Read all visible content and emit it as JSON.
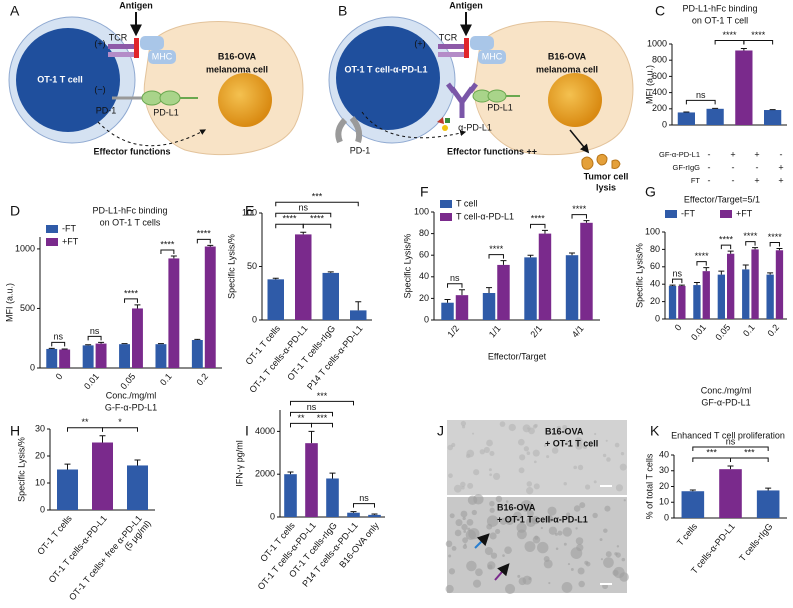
{
  "panel_labels": [
    "A",
    "B",
    "C",
    "D",
    "E",
    "F",
    "G",
    "H",
    "I",
    "J",
    "K"
  ],
  "diagram_a": {
    "antigen": "Antigen",
    "tcr": "TCR",
    "mhc": "MHC",
    "t_cell": "OT-1 T cell",
    "tumor": [
      "B16-OVA",
      "melanoma cell"
    ],
    "plus": "(+)",
    "minus": "(−)",
    "pd1": "PD-1",
    "pdl1": "PD-L1",
    "effector": "Effector functions"
  },
  "diagram_b": {
    "antigen": "Antigen",
    "tcr": "TCR",
    "mhc": "MHC",
    "t_cell": "OT-1 T cell-α-PD-L1",
    "tumor": [
      "B16-OVA",
      "melanoma cell"
    ],
    "plus": "(+)",
    "pdl1": "PD-L1",
    "antibody": "α-PD-L1",
    "pd1": "PD-1",
    "effector": "Effector functions ++",
    "lysis": [
      "Tumor cell",
      "lysis"
    ]
  },
  "image_j": {
    "top_caption": [
      "B16-OVA",
      "+ OT-1 T cell"
    ],
    "bottom_caption": [
      "B16-OVA",
      "+ OT-1 T cell-α-PD-L1"
    ]
  },
  "chart_data": [
    {
      "type": "bar",
      "title": [
        "PD-L1-hFc binding",
        "on OT-1 T cell"
      ],
      "y_label": "MFI (a.u.)",
      "values": [
        155,
        200,
        920,
        185
      ],
      "errors": [
        5,
        5,
        25,
        5
      ],
      "colors": [
        "#2f5ba8",
        "#2f5ba8",
        "#7a2a8c",
        "#2f5ba8"
      ],
      "ylim": [
        0,
        1000
      ],
      "yticks": [
        0,
        200,
        400,
        600,
        800,
        1000
      ],
      "conditions": [
        {
          "name": "GF-α-PD-L1",
          "marks": [
            "-",
            "+",
            "+",
            "-"
          ]
        },
        {
          "name": "GF-rIgG",
          "marks": [
            "-",
            "-",
            "-",
            "+"
          ]
        },
        {
          "name": "FT",
          "marks": [
            "-",
            "-",
            "+",
            "+"
          ]
        }
      ],
      "annotations": [
        {
          "label": "ns",
          "from": 0,
          "to": 1
        },
        {
          "label": "****",
          "from": 1,
          "to": 2
        },
        {
          "label": "****",
          "from": 2,
          "to": 3
        }
      ]
    },
    {
      "type": "grouped_bar",
      "title": [
        "PD-L1-hFc binding",
        "on OT-1 T cells"
      ],
      "y_label": "MFI (a.u.)",
      "x_label": [
        "Conc./mg/ml",
        "G-F-α-PD-L1"
      ],
      "categories": [
        "0",
        "0.01",
        "0.05",
        "0.1",
        "0.2"
      ],
      "series": [
        {
          "name": "-FT",
          "color": "#2f5ba8",
          "values": [
            160,
            190,
            200,
            200,
            235
          ],
          "errors": [
            5,
            5,
            5,
            5,
            5
          ]
        },
        {
          "name": "+FT",
          "color": "#7a2a8c",
          "values": [
            155,
            205,
            500,
            920,
            1020
          ],
          "errors": [
            5,
            10,
            30,
            20,
            10
          ]
        }
      ],
      "ylim": [
        0,
        1100
      ],
      "yticks": [
        0,
        500,
        1000
      ],
      "legend": "upper left",
      "pair_labels": [
        "ns",
        "ns",
        "****",
        "****",
        "****"
      ]
    },
    {
      "type": "bar",
      "y_label": "Specific Lysis/%",
      "categories": [
        "OT-1 T cells",
        "OT-1 T cells-α-PD-L1",
        "OT-1 T cells-rIgG",
        "P14 T cells-α-PD-L1"
      ],
      "values": [
        38,
        80,
        44,
        9
      ],
      "errors": [
        1,
        2,
        1,
        8
      ],
      "colors": [
        "#2f5ba8",
        "#7a2a8c",
        "#2f5ba8",
        "#2f5ba8"
      ],
      "ylim": [
        0,
        100
      ],
      "yticks": [
        0,
        50,
        100
      ],
      "annotations": [
        {
          "label": "****",
          "from": 0,
          "to": 1
        },
        {
          "label": "****",
          "from": 1,
          "to": 2
        },
        {
          "label": "ns",
          "from": 0,
          "to": 2
        },
        {
          "label": "***",
          "from": 0,
          "to": 3
        }
      ]
    },
    {
      "type": "grouped_bar",
      "y_label": "Specific Lysis/%",
      "x_label": [
        "Effector/Target"
      ],
      "categories": [
        "1/2",
        "1/1",
        "2/1",
        "4/1"
      ],
      "series": [
        {
          "name": "T cell",
          "color": "#2f5ba8",
          "values": [
            16,
            25,
            58,
            60
          ],
          "errors": [
            3,
            5,
            2,
            2
          ]
        },
        {
          "name": "T cell-α-PD-L1",
          "color": "#7a2a8c",
          "values": [
            23,
            51,
            80,
            90
          ],
          "errors": [
            5,
            4,
            3,
            2
          ]
        }
      ],
      "ylim": [
        0,
        100
      ],
      "yticks": [
        0,
        20,
        40,
        60,
        80,
        100
      ],
      "legend": "upper left",
      "pair_labels": [
        "ns",
        "****",
        "****",
        "****"
      ]
    },
    {
      "type": "grouped_bar",
      "title": [
        "Effector/Target=5/1"
      ],
      "y_label": "Specific Lysis/%",
      "x_label": [
        "Conc./mg/ml",
        "GF-α-PD-L1"
      ],
      "categories": [
        "0",
        "0.01",
        "0.05",
        "0.1",
        "0.2"
      ],
      "series": [
        {
          "name": "-FT",
          "color": "#2f5ba8",
          "values": [
            38,
            39,
            51,
            57,
            51
          ],
          "errors": [
            1,
            3,
            4,
            5,
            2
          ]
        },
        {
          "name": "+FT",
          "color": "#7a2a8c",
          "values": [
            38,
            55,
            75,
            80,
            79
          ],
          "errors": [
            1,
            4,
            3,
            2,
            2
          ]
        }
      ],
      "ylim": [
        0,
        100
      ],
      "yticks": [
        0,
        20,
        40,
        60,
        80,
        100
      ],
      "legend": "top",
      "pair_labels": [
        "ns",
        "****",
        "****",
        "****",
        "****"
      ]
    },
    {
      "type": "bar",
      "y_label": "Specific Lysis/%",
      "categories": [
        "OT-1 T cells",
        "OT-1 T cells-α-PD-L1",
        "OT-1 T cells+ free α-PD-L1"
      ],
      "category_note": [
        null,
        null,
        "(5 μg/ml)"
      ],
      "values": [
        15,
        25,
        16.5
      ],
      "errors": [
        2,
        2.5,
        2
      ],
      "colors": [
        "#2f5ba8",
        "#7a2a8c",
        "#2f5ba8"
      ],
      "ylim": [
        0,
        30
      ],
      "yticks": [
        0,
        10,
        20,
        30
      ],
      "annotations": [
        {
          "label": "**",
          "from": 0,
          "to": 1
        },
        {
          "label": "*",
          "from": 1,
          "to": 2
        }
      ]
    },
    {
      "type": "bar",
      "y_label": "IFN-γ pg/ml",
      "categories": [
        "OT-1 T cells",
        "OT-1 T cells-α-PD-L1",
        "OT-1 T cells-rIgG",
        "P14 T cells-α-PD-L1",
        "B16-OVA only"
      ],
      "values": [
        2000,
        3450,
        1800,
        200,
        100
      ],
      "errors": [
        100,
        550,
        250,
        50,
        40
      ],
      "colors": [
        "#2f5ba8",
        "#7a2a8c",
        "#2f5ba8",
        "#2f5ba8",
        "#2f5ba8"
      ],
      "ylim": [
        0,
        5000
      ],
      "yticks": [
        0,
        2000,
        4000
      ],
      "annotations": [
        {
          "label": "**",
          "from": 0,
          "to": 1
        },
        {
          "label": "***",
          "from": 1,
          "to": 2
        },
        {
          "label": "ns",
          "from": 0,
          "to": 2
        },
        {
          "label": "***",
          "from": 0,
          "to": 3
        },
        {
          "label": "ns",
          "from": 3,
          "to": 4
        }
      ]
    },
    {
      "type": "bar",
      "title": [
        "Enhanced T cell proliferation"
      ],
      "y_label": "% of total T cells",
      "categories": [
        "T cells",
        "T cells-α-PD-L1",
        "T cells-rIgG"
      ],
      "values": [
        17,
        31,
        17.5
      ],
      "errors": [
        0.8,
        2,
        1.5
      ],
      "colors": [
        "#2f5ba8",
        "#7a2a8c",
        "#2f5ba8"
      ],
      "ylim": [
        0,
        40
      ],
      "yticks": [
        0,
        10,
        20,
        30,
        40
      ],
      "annotations": [
        {
          "label": "***",
          "from": 0,
          "to": 1
        },
        {
          "label": "***",
          "from": 1,
          "to": 2
        },
        {
          "label": "ns",
          "from": 0,
          "to": 2
        }
      ]
    }
  ]
}
